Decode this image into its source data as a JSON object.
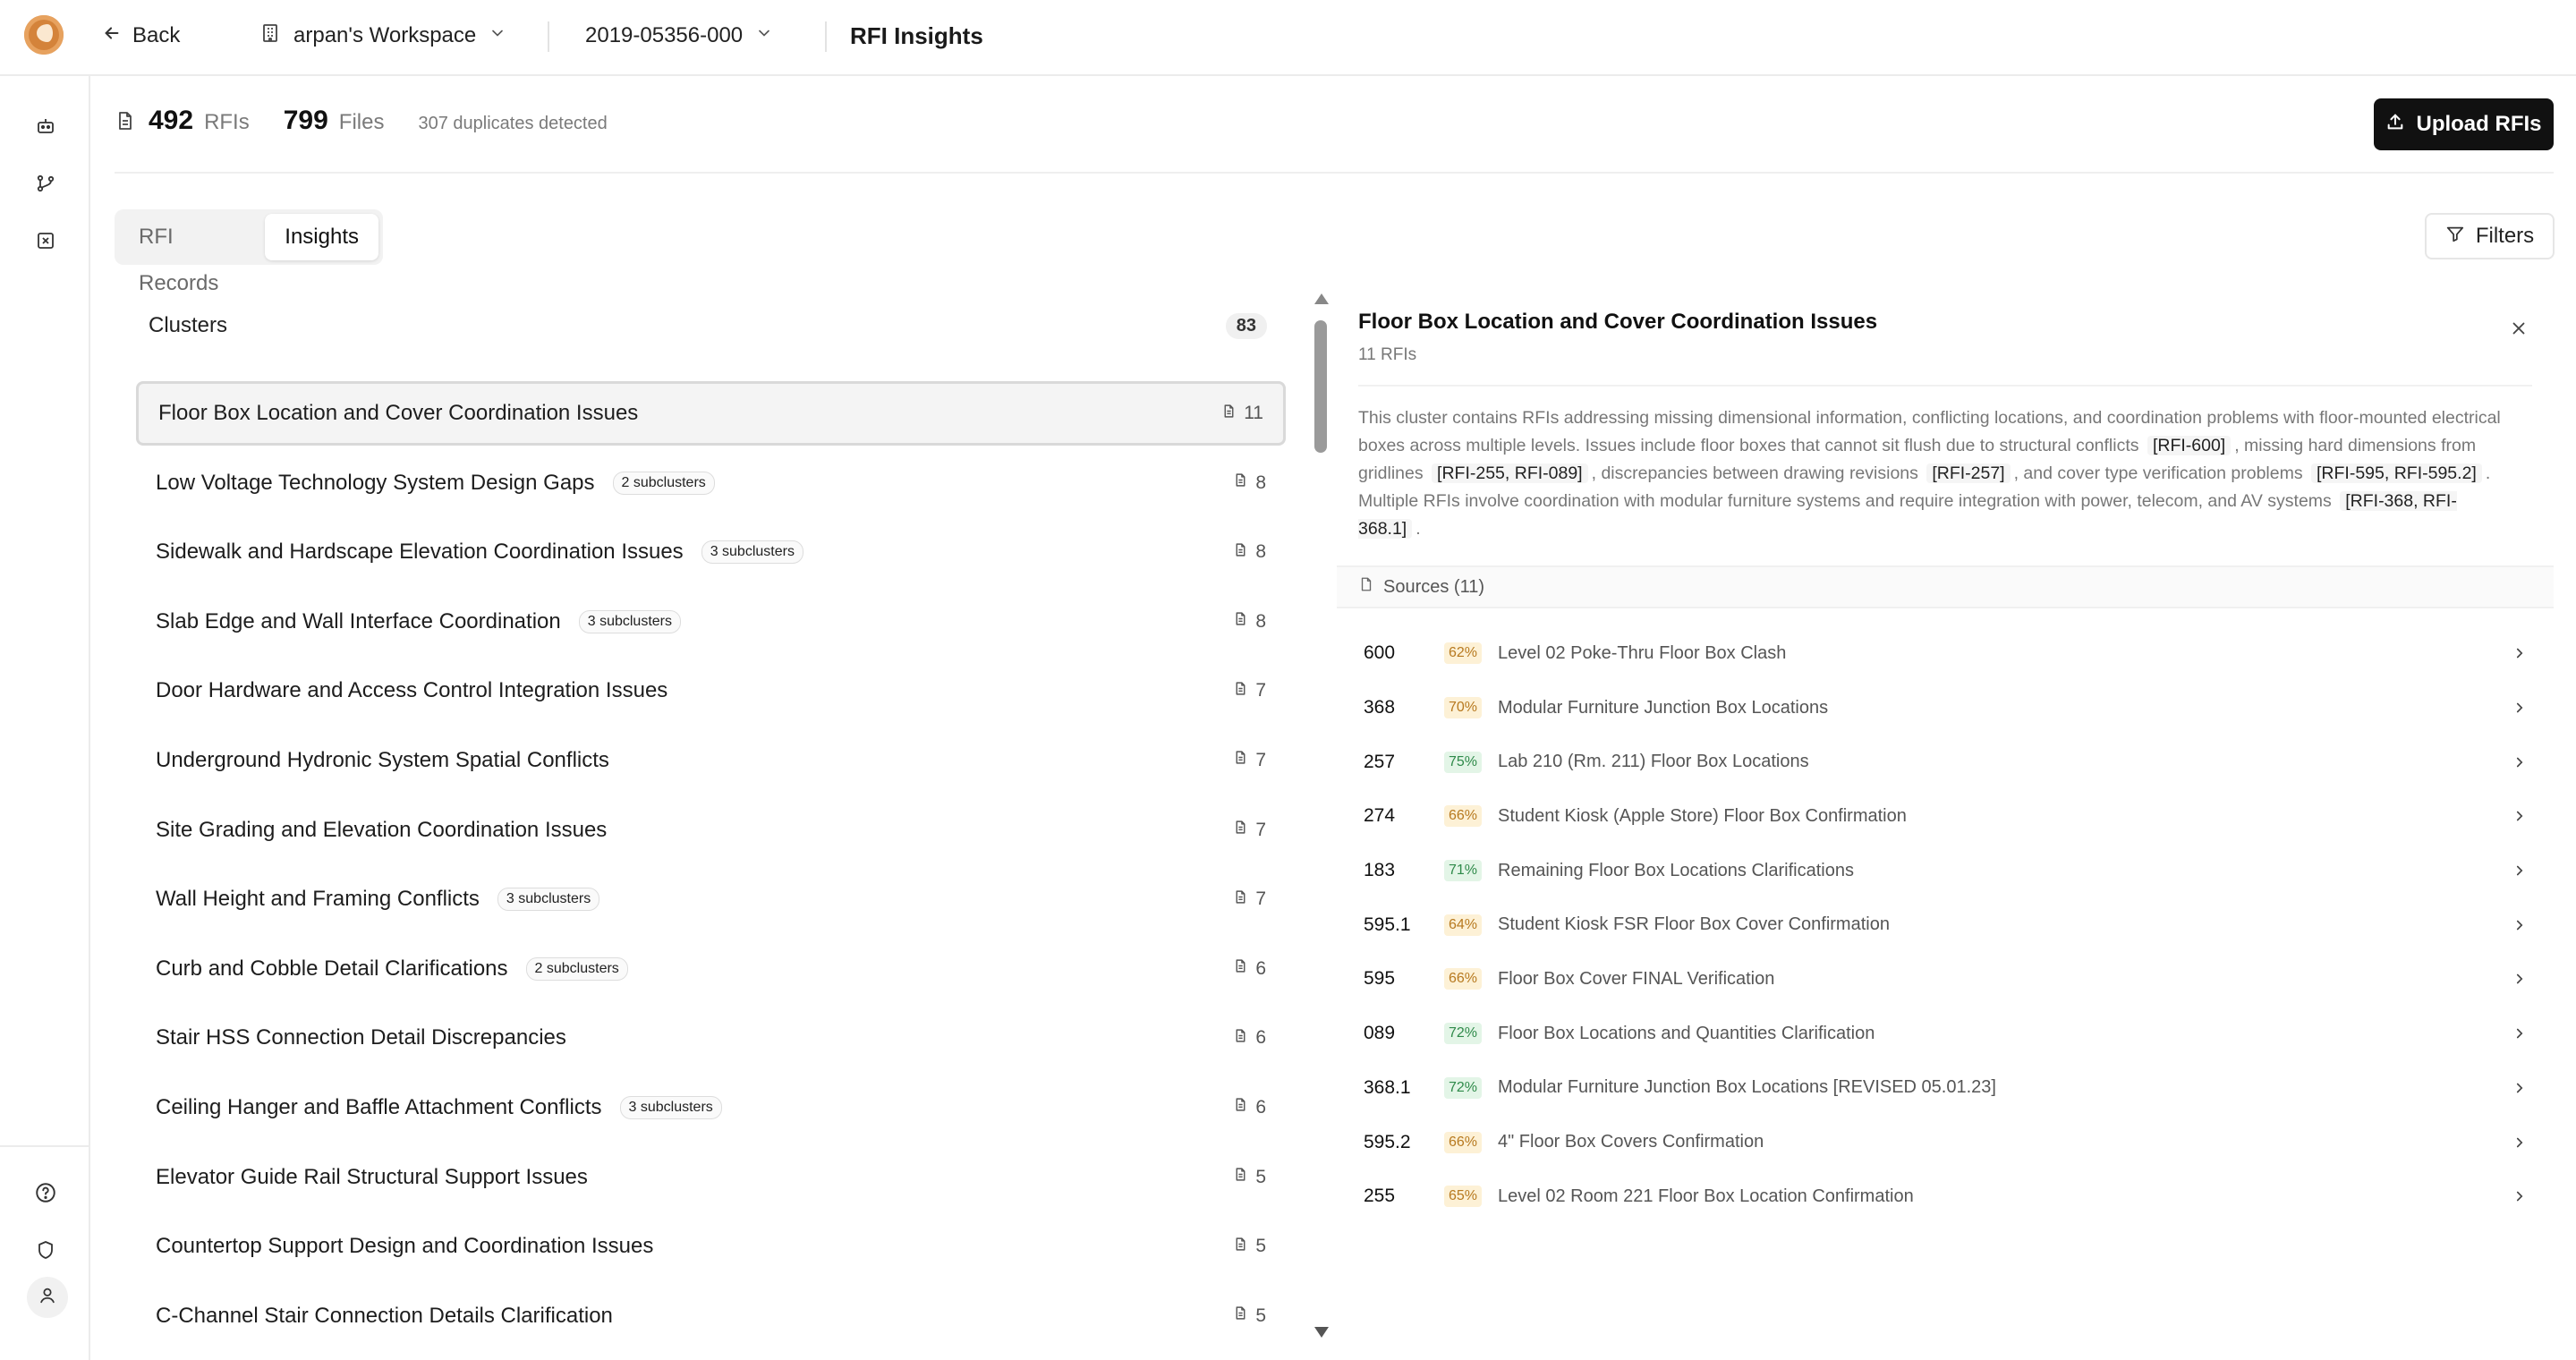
{
  "topbar": {
    "back_label": "Back",
    "workspace_name": "arpan's Workspace",
    "project_id": "2019-05356-000",
    "page_title": "RFI Insights"
  },
  "stats": {
    "rfi_count": "492",
    "rfi_label": "RFIs",
    "file_count": "799",
    "file_label": "Files",
    "duplicates": "307 duplicates detected",
    "upload_label": "Upload RFIs"
  },
  "tabs": [
    {
      "label": "RFI Records",
      "active": false
    },
    {
      "label": "Insights",
      "active": true
    }
  ],
  "filters_label": "Filters",
  "clusters": {
    "title": "Clusters",
    "count": "83",
    "items": [
      {
        "name": "Floor Box Location and Cover Coordination Issues",
        "badge": "",
        "count": "11"
      },
      {
        "name": "Low Voltage Technology System Design Gaps",
        "badge": "2 subclusters",
        "count": "8"
      },
      {
        "name": "Sidewalk and Hardscape Elevation Coordination Issues",
        "badge": "3 subclusters",
        "count": "8"
      },
      {
        "name": "Slab Edge and Wall Interface Coordination",
        "badge": "3 subclusters",
        "count": "8"
      },
      {
        "name": "Door Hardware and Access Control Integration Issues",
        "badge": "",
        "count": "7"
      },
      {
        "name": "Underground Hydronic System Spatial Conflicts",
        "badge": "",
        "count": "7"
      },
      {
        "name": "Site Grading and Elevation Coordination Issues",
        "badge": "",
        "count": "7"
      },
      {
        "name": "Wall Height and Framing Conflicts",
        "badge": "3 subclusters",
        "count": "7"
      },
      {
        "name": "Curb and Cobble Detail Clarifications",
        "badge": "2 subclusters",
        "count": "6"
      },
      {
        "name": "Stair HSS Connection Detail Discrepancies",
        "badge": "",
        "count": "6"
      },
      {
        "name": "Ceiling Hanger and Baffle Attachment Conflicts",
        "badge": "3 subclusters",
        "count": "6"
      },
      {
        "name": "Elevator Guide Rail Structural Support Issues",
        "badge": "",
        "count": "5"
      },
      {
        "name": "Countertop Support Design and Coordination Issues",
        "badge": "",
        "count": "5"
      },
      {
        "name": "C-Channel Stair Connection Details Clarification",
        "badge": "",
        "count": "5"
      }
    ]
  },
  "detail": {
    "title": "Floor Box Location and Cover Coordination Issues",
    "subtitle": "11 RFIs",
    "desc_1": "This cluster contains RFIs addressing missing dimensional information, conflicting locations, and coordination problems with floor-mounted electrical boxes across multiple levels. Issues include floor boxes that cannot sit flush due to structural conflicts",
    "ref_1": "[RFI-600]",
    "desc_2": ", missing hard dimensions from gridlines",
    "ref_2": "[RFI-255, RFI-089]",
    "desc_3": ", discrepancies between drawing revisions",
    "ref_3": "[RFI-257]",
    "desc_4": ", and cover type verification problems",
    "ref_4": "[RFI-595, RFI-595.2]",
    "desc_5": ". Multiple RFIs involve coordination with modular furniture systems and require integration with power, telecom, and AV systems",
    "ref_5": "[RFI-368, RFI-368.1]",
    "desc_6": ".",
    "sources_label": "Sources (11)",
    "sources": [
      {
        "id": "600",
        "pct": "62%",
        "tone": "amber",
        "title": "Level 02 Poke-Thru Floor Box Clash"
      },
      {
        "id": "368",
        "pct": "70%",
        "tone": "amber",
        "title": "Modular Furniture Junction Box Locations"
      },
      {
        "id": "257",
        "pct": "75%",
        "tone": "green",
        "title": "Lab 210 (Rm. 211) Floor Box Locations"
      },
      {
        "id": "274",
        "pct": "66%",
        "tone": "amber",
        "title": "Student Kiosk (Apple Store) Floor Box Confirmation"
      },
      {
        "id": "183",
        "pct": "71%",
        "tone": "green",
        "title": "Remaining Floor Box Locations Clarifications"
      },
      {
        "id": "595.1",
        "pct": "64%",
        "tone": "amber",
        "title": "Student Kiosk FSR Floor Box Cover Confirmation"
      },
      {
        "id": "595",
        "pct": "66%",
        "tone": "amber",
        "title": "Floor Box Cover FINAL Verification"
      },
      {
        "id": "089",
        "pct": "72%",
        "tone": "green",
        "title": "Floor Box Locations and Quantities Clarification"
      },
      {
        "id": "368.1",
        "pct": "72%",
        "tone": "green",
        "title": "Modular Furniture Junction Box Locations [REVISED 05.01.23]"
      },
      {
        "id": "595.2",
        "pct": "66%",
        "tone": "amber",
        "title": "4\" Floor Box Covers Confirmation"
      },
      {
        "id": "255",
        "pct": "65%",
        "tone": "amber",
        "title": "Level 02 Room 221 Floor Box Location Confirmation"
      }
    ]
  }
}
